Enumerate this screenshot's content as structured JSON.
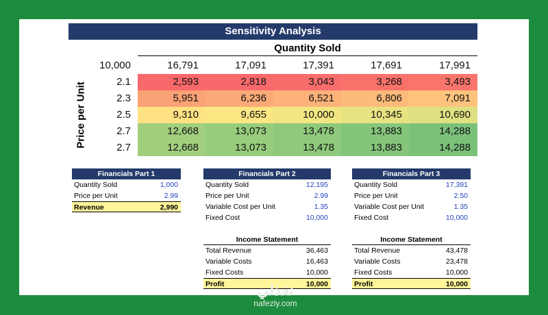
{
  "title": "Sensitivity Analysis",
  "x_label": "Quantity Sold",
  "y_label": "Price per Unit",
  "corner_value": "10,000",
  "columns": [
    "16,791",
    "17,091",
    "17,391",
    "17,691",
    "17,991"
  ],
  "rows": [
    {
      "label": "2.1",
      "values": [
        "2,593",
        "2,818",
        "3,043",
        "3,268",
        "3,493"
      ]
    },
    {
      "label": "2.3",
      "values": [
        "5,951",
        "6,236",
        "6,521",
        "6,806",
        "7,091"
      ]
    },
    {
      "label": "2.5",
      "values": [
        "9,310",
        "9,655",
        "10,000",
        "10,345",
        "10,690"
      ]
    },
    {
      "label": "2.7",
      "values": [
        "12,668",
        "13,073",
        "13,478",
        "13,883",
        "14,288"
      ]
    },
    {
      "label": "2.7",
      "values": [
        "12,668",
        "13,073",
        "13,478",
        "13,883",
        "14,288"
      ]
    }
  ],
  "heat_colors": [
    [
      "#f8696b",
      "#f8696b",
      "#f86d6b",
      "#f8716b",
      "#f9756c"
    ],
    [
      "#fba276",
      "#fbaa77",
      "#fcb279",
      "#fcbb7a",
      "#fdc37c"
    ],
    [
      "#ffe283",
      "#fbe683",
      "#f2e682",
      "#e8e382",
      "#dfe081"
    ],
    [
      "#a2cf7e",
      "#98cc7d",
      "#8fc97c",
      "#85c57b",
      "#7bc17a"
    ],
    [
      "#a2cf7e",
      "#98cc7d",
      "#8fc97c",
      "#85c57b",
      "#7bc17a"
    ]
  ],
  "part1": {
    "header": "Financials Part 1",
    "rows": [
      {
        "label": "Quantity Sold",
        "value": "1,000"
      },
      {
        "label": "Price per Unit",
        "value": "2.99"
      }
    ],
    "total": {
      "label": "Revenue",
      "value": "2,990"
    }
  },
  "part2": {
    "header": "Financials Part 2",
    "rows": [
      {
        "label": "Quantity Sold",
        "value": "12,195"
      },
      {
        "label": "Price per Unit",
        "value": "2.99"
      },
      {
        "label": "Variable Cost per Unit",
        "value": "1.35"
      },
      {
        "label": "Fixed Cost",
        "value": "10,000"
      }
    ],
    "income": {
      "header": "Income Statement",
      "rows": [
        {
          "label": "Total Revenue",
          "value": "36,463"
        },
        {
          "label": "Variable Costs",
          "value": "16,463"
        },
        {
          "label": "Fixed Costs",
          "value": "10,000"
        }
      ],
      "total": {
        "label": "Profit",
        "value": "10,000"
      }
    }
  },
  "part3": {
    "header": "Financials Part 3",
    "rows": [
      {
        "label": "Quantity Sold",
        "value": "17,391"
      },
      {
        "label": "Price per Unit",
        "value": "2.50"
      },
      {
        "label": "Variable Cost per Unit",
        "value": "1.35"
      },
      {
        "label": "Fixed Cost",
        "value": "10,000"
      }
    ],
    "income": {
      "header": "Income Statement",
      "rows": [
        {
          "label": "Total Revenue",
          "value": "43,478"
        },
        {
          "label": "Variable Costs",
          "value": "23,478"
        },
        {
          "label": "Fixed Costs",
          "value": "10,000"
        }
      ],
      "total": {
        "label": "Profit",
        "value": "10,000"
      }
    }
  },
  "watermark": {
    "arabic": "نفذلي",
    "latin": "nafezly.com"
  },
  "colors": {
    "frame": "#1e8c3e",
    "header": "#243a6b",
    "input_blue": "#1f3fbf",
    "total_fill": "#fff59a"
  }
}
